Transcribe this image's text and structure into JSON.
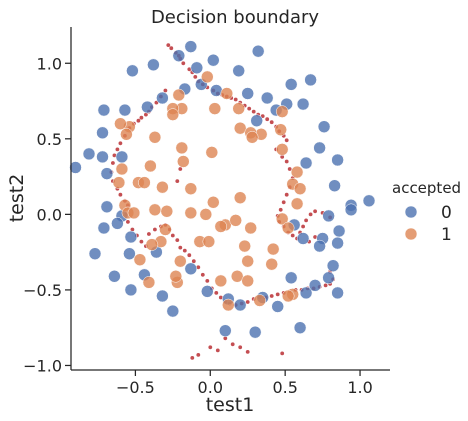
{
  "chart_data": {
    "type": "scatter",
    "title": "Decision boundary",
    "xlabel": "test1",
    "ylabel": "test2",
    "xlim": [
      -0.93,
      1.2
    ],
    "ylim": [
      -1.03,
      1.24
    ],
    "grid": false,
    "x_ticks": [
      -0.5,
      0.0,
      0.5,
      1.0
    ],
    "x_tick_labels": [
      "−0.5",
      "0.0",
      "0.5",
      "1.0"
    ],
    "y_ticks": [
      -1.0,
      -0.5,
      0.0,
      0.5,
      1.0
    ],
    "y_tick_labels": [
      "−1.0",
      "−0.5",
      "0.0",
      "0.5",
      "1.0"
    ],
    "legend": {
      "title": "accepted",
      "placement": "right",
      "entries": [
        {
          "label": "0",
          "color": "#4c72b0"
        },
        {
          "label": "1",
          "color": "#dd8452"
        }
      ]
    },
    "series": [
      {
        "name": "0",
        "color": "#4c72b0",
        "points": [
          [
            -0.13,
            1.11
          ],
          [
            0.32,
            1.08
          ],
          [
            -0.21,
            1.05
          ],
          [
            -0.38,
            0.99
          ],
          [
            0.02,
            1.02
          ],
          [
            -0.09,
            0.97
          ],
          [
            0.19,
            0.95
          ],
          [
            -0.52,
            0.95
          ],
          [
            0.67,
            0.89
          ],
          [
            0.54,
            0.86
          ],
          [
            -0.06,
            0.86
          ],
          [
            -0.17,
            0.83
          ],
          [
            0.04,
            0.82
          ],
          [
            0.25,
            0.8
          ],
          [
            0.38,
            0.77
          ],
          [
            -0.32,
            0.77
          ],
          [
            -0.42,
            0.71
          ],
          [
            0.51,
            0.73
          ],
          [
            0.62,
            0.73
          ],
          [
            0.44,
            0.69
          ],
          [
            -0.71,
            0.69
          ],
          [
            -0.57,
            0.69
          ],
          [
            0.31,
            0.62
          ],
          [
            0.76,
            0.58
          ],
          [
            -0.72,
            0.54
          ],
          [
            0.73,
            0.44
          ],
          [
            -0.81,
            0.4
          ],
          [
            -0.72,
            0.38
          ],
          [
            -0.59,
            0.38
          ],
          [
            0.85,
            0.36
          ],
          [
            0.64,
            0.34
          ],
          [
            -0.9,
            0.31
          ],
          [
            -0.69,
            0.27
          ],
          [
            0.83,
            0.19
          ],
          [
            0.94,
            0.06
          ],
          [
            1.06,
            0.09
          ],
          [
            -0.69,
            0.05
          ],
          [
            0.94,
            0.03
          ],
          [
            -0.59,
            -0.01
          ],
          [
            0.79,
            -0.01
          ],
          [
            -0.62,
            -0.06
          ],
          [
            0.56,
            -0.07
          ],
          [
            -0.71,
            -0.09
          ],
          [
            0.86,
            -0.11
          ],
          [
            -0.53,
            -0.15
          ],
          [
            0.62,
            -0.16
          ],
          [
            0.75,
            -0.16
          ],
          [
            -0.77,
            -0.26
          ],
          [
            0.85,
            -0.19
          ],
          [
            0.73,
            -0.21
          ],
          [
            -0.54,
            -0.26
          ],
          [
            -0.36,
            -0.25
          ],
          [
            0.82,
            -0.34
          ],
          [
            -0.64,
            -0.41
          ],
          [
            0.54,
            -0.42
          ],
          [
            0.79,
            -0.42
          ],
          [
            -0.44,
            -0.4
          ],
          [
            -0.13,
            -0.36
          ],
          [
            0.7,
            -0.47
          ],
          [
            -0.53,
            -0.5
          ],
          [
            -0.02,
            -0.51
          ],
          [
            -0.32,
            -0.54
          ],
          [
            0.64,
            -0.52
          ],
          [
            0.85,
            -0.52
          ],
          [
            0.12,
            -0.56
          ],
          [
            -0.25,
            -0.64
          ],
          [
            0.2,
            -0.6
          ],
          [
            0.45,
            -0.61
          ],
          [
            0.1,
            -0.77
          ],
          [
            0.3,
            -0.78
          ],
          [
            0.6,
            -0.75
          ],
          [
            0.35,
            -0.55
          ]
        ]
      },
      {
        "name": "1",
        "color": "#dd8452",
        "points": [
          [
            -0.02,
            0.91
          ],
          [
            -0.21,
            0.79
          ],
          [
            0.03,
            0.7
          ],
          [
            0.11,
            0.8
          ],
          [
            0.19,
            0.7
          ],
          [
            -0.19,
            0.7
          ],
          [
            -0.25,
            0.7
          ],
          [
            0.48,
            0.68
          ],
          [
            0.47,
            0.56
          ],
          [
            -0.25,
            0.66
          ],
          [
            -0.54,
            0.58
          ],
          [
            -0.6,
            0.6
          ],
          [
            0.2,
            0.57
          ],
          [
            -0.56,
            0.53
          ],
          [
            0.34,
            0.53
          ],
          [
            0.27,
            0.54
          ],
          [
            0.48,
            0.43
          ],
          [
            0.28,
            0.51
          ],
          [
            -0.37,
            0.51
          ],
          [
            -0.19,
            0.44
          ],
          [
            0.01,
            0.41
          ],
          [
            -0.4,
            0.32
          ],
          [
            -0.18,
            0.35
          ],
          [
            -0.32,
            0.18
          ],
          [
            0.58,
            0.28
          ],
          [
            0.55,
            0.2
          ],
          [
            0.6,
            0.17
          ],
          [
            0.58,
            0.07
          ],
          [
            -0.59,
            0.3
          ],
          [
            -0.48,
            0.21
          ],
          [
            -0.61,
            0.21
          ],
          [
            -0.44,
            0.21
          ],
          [
            -0.57,
            0.06
          ],
          [
            -0.13,
            0.17
          ],
          [
            0.02,
            0.08
          ],
          [
            0.2,
            0.11
          ],
          [
            -0.03,
            0.0
          ],
          [
            -0.29,
            0.02
          ],
          [
            -0.37,
            0.03
          ],
          [
            0.48,
            -0.03
          ],
          [
            0.52,
            -0.09
          ],
          [
            -0.13,
            0.01
          ],
          [
            -0.55,
            0.01
          ],
          [
            -0.51,
            0.01
          ],
          [
            0.1,
            -0.07
          ],
          [
            0.17,
            -0.04
          ],
          [
            0.07,
            -0.08
          ],
          [
            0.27,
            -0.09
          ],
          [
            -0.3,
            -0.1
          ],
          [
            -0.33,
            -0.18
          ],
          [
            -0.07,
            -0.18
          ],
          [
            -0.01,
            -0.18
          ],
          [
            -0.39,
            -0.2
          ],
          [
            0.23,
            -0.21
          ],
          [
            0.42,
            -0.23
          ],
          [
            -0.2,
            -0.31
          ],
          [
            0.25,
            -0.31
          ],
          [
            0.41,
            -0.33
          ],
          [
            0.18,
            -0.41
          ],
          [
            -0.41,
            -0.45
          ],
          [
            -0.22,
            -0.45
          ],
          [
            0.07,
            -0.44
          ],
          [
            0.25,
            -0.44
          ],
          [
            0.55,
            -0.53
          ],
          [
            0.52,
            -0.54
          ],
          [
            0.33,
            -0.57
          ],
          [
            0.12,
            -0.6
          ],
          [
            -0.23,
            -0.41
          ],
          [
            -0.47,
            -0.3
          ]
        ]
      }
    ],
    "boundary": {
      "color": "#c44e52",
      "points": [
        [
          -0.28,
          1.12
        ],
        [
          -0.26,
          1.1
        ],
        [
          -0.23,
          1.07
        ],
        [
          -0.21,
          1.05
        ],
        [
          -0.2,
          1.03
        ],
        [
          -0.18,
          1.0
        ],
        [
          -0.14,
          0.96
        ],
        [
          -0.12,
          0.94
        ],
        [
          -0.1,
          0.91
        ],
        [
          -0.08,
          0.88
        ],
        [
          -0.05,
          0.86
        ],
        [
          -0.02,
          0.84
        ],
        [
          0.02,
          0.82
        ],
        [
          0.05,
          0.8
        ],
        [
          0.08,
          0.79
        ],
        [
          0.11,
          0.78
        ],
        [
          0.14,
          0.77
        ],
        [
          0.17,
          0.76
        ],
        [
          0.2,
          0.74
        ],
        [
          0.23,
          0.72
        ],
        [
          0.26,
          0.7
        ],
        [
          0.29,
          0.68
        ],
        [
          0.32,
          0.66
        ],
        [
          0.35,
          0.65
        ],
        [
          0.38,
          0.63
        ],
        [
          0.41,
          0.61
        ],
        [
          0.44,
          0.58
        ],
        [
          0.46,
          0.55
        ],
        [
          0.49,
          0.52
        ],
        [
          0.51,
          0.49
        ],
        [
          -0.3,
          0.82
        ],
        [
          -0.33,
          0.78
        ],
        [
          -0.36,
          0.74
        ],
        [
          -0.39,
          0.71
        ],
        [
          -0.41,
          0.68
        ],
        [
          -0.43,
          0.66
        ],
        [
          -0.46,
          0.64
        ],
        [
          -0.48,
          0.62
        ],
        [
          -0.51,
          0.6
        ],
        [
          -0.54,
          0.57
        ],
        [
          -0.57,
          0.52
        ],
        [
          -0.6,
          0.47
        ],
        [
          -0.62,
          0.43
        ],
        [
          -0.64,
          0.39
        ],
        [
          -0.65,
          0.34
        ],
        [
          -0.66,
          0.28
        ],
        [
          -0.65,
          0.22
        ],
        [
          -0.62,
          0.17
        ],
        [
          -0.6,
          0.13
        ],
        [
          -0.57,
          0.09
        ],
        [
          -0.55,
          0.06
        ],
        [
          -0.2,
          0.3
        ],
        [
          -0.22,
          0.22
        ],
        [
          -0.56,
          0.0
        ],
        [
          -0.55,
          -0.05
        ],
        [
          -0.52,
          -0.1
        ],
        [
          -0.49,
          -0.14
        ],
        [
          -0.46,
          -0.18
        ],
        [
          -0.43,
          -0.21
        ],
        [
          -0.41,
          -0.13
        ],
        [
          -0.37,
          -0.1
        ],
        [
          -0.33,
          -0.08
        ],
        [
          -0.3,
          -0.07
        ],
        [
          -0.27,
          -0.1
        ],
        [
          -0.25,
          -0.14
        ],
        [
          -0.22,
          -0.17
        ],
        [
          -0.2,
          -0.22
        ],
        [
          -0.17,
          -0.24
        ],
        [
          -0.14,
          -0.27
        ],
        [
          -0.11,
          -0.31
        ],
        [
          -0.08,
          -0.35
        ],
        [
          -0.05,
          -0.4
        ],
        [
          -0.02,
          -0.44
        ],
        [
          0.01,
          -0.49
        ],
        [
          0.04,
          -0.52
        ],
        [
          0.07,
          -0.55
        ],
        [
          0.1,
          -0.58
        ],
        [
          0.13,
          -0.59
        ],
        [
          0.17,
          -0.6
        ],
        [
          0.21,
          -0.59
        ],
        [
          0.25,
          -0.58
        ],
        [
          0.29,
          -0.56
        ],
        [
          0.33,
          -0.55
        ],
        [
          0.37,
          -0.55
        ],
        [
          0.41,
          -0.54
        ],
        [
          0.45,
          -0.53
        ],
        [
          0.49,
          -0.52
        ],
        [
          0.53,
          -0.51
        ],
        [
          0.57,
          -0.5
        ],
        [
          0.61,
          -0.5
        ],
        [
          0.65,
          -0.49
        ],
        [
          0.69,
          -0.49
        ],
        [
          0.73,
          -0.48
        ],
        [
          0.77,
          -0.47
        ],
        [
          0.8,
          -0.46
        ],
        [
          0.82,
          -0.43
        ],
        [
          0.8,
          -0.38
        ],
        [
          0.44,
          0.43
        ],
        [
          0.48,
          0.38
        ],
        [
          0.51,
          0.35
        ],
        [
          0.53,
          0.3
        ],
        [
          0.55,
          0.24
        ],
        [
          0.53,
          0.18
        ],
        [
          0.51,
          0.13
        ],
        [
          0.49,
          0.08
        ],
        [
          0.47,
          0.03
        ],
        [
          0.45,
          -0.01
        ],
        [
          0.46,
          -0.05
        ],
        [
          0.49,
          -0.08
        ],
        [
          0.52,
          -0.12
        ],
        [
          0.55,
          -0.14
        ],
        [
          0.58,
          -0.16
        ],
        [
          0.6,
          -0.12
        ],
        [
          0.62,
          -0.08
        ],
        [
          0.64,
          -0.04
        ],
        [
          0.67,
          0.0
        ],
        [
          0.7,
          0.02
        ],
        [
          0.75,
          0.01
        ],
        [
          0.8,
          -0.02
        ],
        [
          0.7,
          -0.15
        ],
        [
          0.66,
          -0.18
        ],
        [
          0.1,
          -0.82
        ],
        [
          0.15,
          -0.86
        ],
        [
          0.2,
          -0.88
        ],
        [
          0.25,
          -0.91
        ],
        [
          0.0,
          -0.88
        ],
        [
          0.05,
          -0.9
        ],
        [
          -0.08,
          -0.93
        ],
        [
          -0.12,
          -0.95
        ],
        [
          0.48,
          -0.92
        ]
      ]
    }
  }
}
